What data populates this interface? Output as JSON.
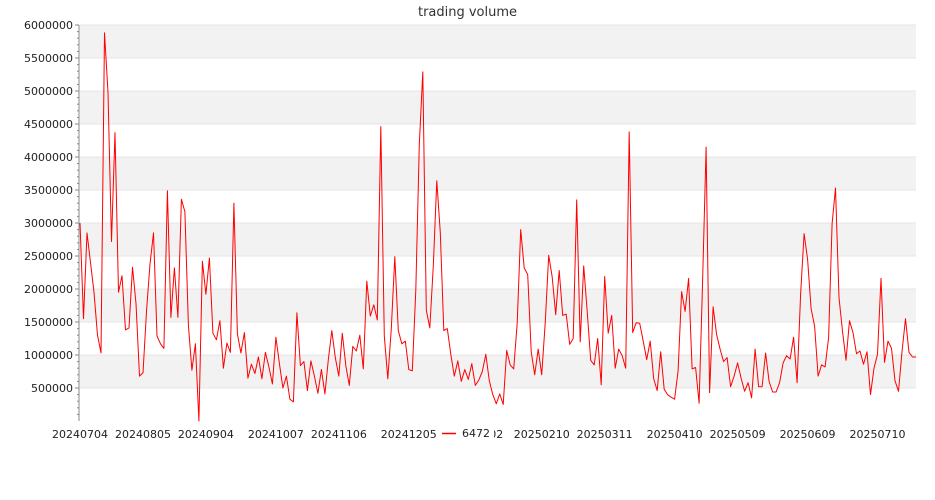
{
  "chart_data": {
    "type": "line",
    "title": "trading volume",
    "xlabel": "",
    "ylabel": "",
    "ylim": [
      0,
      6000000
    ],
    "yticks": [
      500000,
      1000000,
      1500000,
      2000000,
      2500000,
      3000000,
      3500000,
      4000000,
      4500000,
      5000000,
      5500000,
      6000000
    ],
    "ytick_labels": [
      "500000",
      "1000000",
      "1500000",
      "2000000",
      "2500000",
      "3000000",
      "3500000",
      "4000000",
      "4500000",
      "5000000",
      "5500000",
      "6000000"
    ],
    "xtick_labels": [
      {
        "label": "20240704",
        "index": 0
      },
      {
        "label": "20240805",
        "index": 18
      },
      {
        "label": "20240904",
        "index": 36
      },
      {
        "label": "20241007",
        "index": 56
      },
      {
        "label": "20241106",
        "index": 74
      },
      {
        "label": "20241205",
        "index": 94
      },
      {
        "label": "20250102",
        "index": 113
      },
      {
        "label": "20250210",
        "index": 132
      },
      {
        "label": "20250311",
        "index": 150
      },
      {
        "label": "20250410",
        "index": 170
      },
      {
        "label": "20250509",
        "index": 188
      },
      {
        "label": "20250609",
        "index": 208
      },
      {
        "label": "20250710",
        "index": 228
      }
    ],
    "grid": "alternating horizontal bands",
    "line_color": "#ff0000",
    "band_color": "#f2f2f2",
    "legend": {
      "position": "bottom-center",
      "label": "6472"
    },
    "series": [
      {
        "name": "6472",
        "values": [
          3000000,
          1550000,
          2850000,
          2400000,
          1950000,
          1300000,
          1030000,
          5880000,
          4980000,
          2720000,
          4370000,
          1950000,
          2200000,
          1380000,
          1410000,
          2330000,
          1780000,
          680000,
          730000,
          1660000,
          2380000,
          2850000,
          1290000,
          1170000,
          1100000,
          3490000,
          1570000,
          2320000,
          1570000,
          3360000,
          3170000,
          1450000,
          770000,
          1170000,
          0,
          2420000,
          1920000,
          2470000,
          1330000,
          1230000,
          1520000,
          800000,
          1180000,
          1040000,
          3300000,
          1320000,
          1030000,
          1340000,
          650000,
          860000,
          720000,
          970000,
          640000,
          1040000,
          820000,
          560000,
          1270000,
          870000,
          500000,
          680000,
          330000,
          290000,
          1640000,
          840000,
          900000,
          460000,
          910000,
          680000,
          420000,
          780000,
          410000,
          940000,
          1370000,
          960000,
          680000,
          1330000,
          840000,
          540000,
          1130000,
          1060000,
          1300000,
          790000,
          2120000,
          1590000,
          1760000,
          1530000,
          4460000,
          1290000,
          640000,
          1400000,
          2490000,
          1370000,
          1170000,
          1210000,
          780000,
          760000,
          1980000,
          4190000,
          5290000,
          1680000,
          1410000,
          2350000,
          3640000,
          2850000,
          1370000,
          1400000,
          1010000,
          680000,
          910000,
          600000,
          780000,
          630000,
          870000,
          540000,
          620000,
          750000,
          1010000,
          610000,
          400000,
          260000,
          410000,
          250000,
          1070000,
          850000,
          790000,
          1480000,
          2900000,
          2320000,
          2220000,
          1050000,
          700000,
          1090000,
          700000,
          1480000,
          2510000,
          2180000,
          1610000,
          2280000,
          1600000,
          1620000,
          1160000,
          1250000,
          3350000,
          1200000,
          2350000,
          1660000,
          920000,
          850000,
          1250000,
          550000,
          2190000,
          1330000,
          1600000,
          800000,
          1090000,
          990000,
          800000,
          4380000,
          1340000,
          1490000,
          1480000,
          1210000,
          930000,
          1210000,
          640000,
          460000,
          1050000,
          480000,
          400000,
          360000,
          330000,
          760000,
          1960000,
          1660000,
          2160000,
          790000,
          810000,
          270000,
          2120000,
          4150000,
          430000,
          1730000,
          1310000,
          1090000,
          900000,
          960000,
          520000,
          680000,
          880000,
          650000,
          450000,
          580000,
          350000,
          1090000,
          520000,
          520000,
          1030000,
          600000,
          440000,
          440000,
          580000,
          880000,
          990000,
          940000,
          1270000,
          580000,
          1920000,
          2840000,
          2450000,
          1700000,
          1440000,
          680000,
          850000,
          820000,
          1260000,
          2990000,
          3530000,
          1870000,
          1360000,
          920000,
          1520000,
          1340000,
          1020000,
          1060000,
          860000,
          1050000,
          400000,
          800000,
          1010000,
          2160000,
          890000,
          1210000,
          1100000,
          610000,
          450000,
          1050000,
          1550000,
          1040000,
          970000,
          970000
        ]
      }
    ]
  }
}
